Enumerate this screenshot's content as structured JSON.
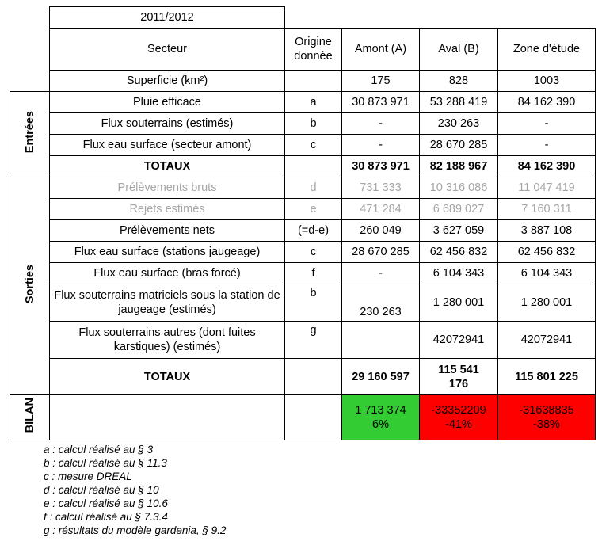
{
  "year": "2011/2012",
  "headers": {
    "secteur": "Secteur",
    "origine": "Origine donnée",
    "amont": "Amont (A)",
    "aval": "Aval (B)",
    "zone": "Zone d'étude"
  },
  "superficie": {
    "label": "Superficie (km²)",
    "amont": "175",
    "aval": "828",
    "zone": "1003"
  },
  "entrees": {
    "label": "Entrées",
    "rows": [
      {
        "label": "Pluie efficace",
        "origine": "a",
        "amont": "30 873 971",
        "aval": "53 288 419",
        "zone": "84 162 390"
      },
      {
        "label": "Flux souterrains (estimés)",
        "origine": "b",
        "amont": "-",
        "aval": "230 263",
        "zone": "-"
      },
      {
        "label": "Flux eau surface (secteur amont)",
        "origine": "c",
        "amont": "-",
        "aval": "28 670 285",
        "zone": "-"
      }
    ],
    "totaux": {
      "label": "TOTAUX",
      "amont": "30 873 971",
      "aval": "82 188 967",
      "zone": "84 162 390"
    }
  },
  "sorties": {
    "label": "Sorties",
    "rows": [
      {
        "label": "Prélèvements bruts",
        "origine": "d",
        "amont": "731 333",
        "aval": "10 316 086",
        "zone": "11 047 419"
      },
      {
        "label": "Rejets estimés",
        "origine": "e",
        "amont": "471 284",
        "aval": "6 689 027",
        "zone": "7 160 311"
      },
      {
        "label": "Prélèvements nets",
        "origine": "(=d-e)",
        "amont": "260 049",
        "aval": "3 627 059",
        "zone": "3 887 108"
      },
      {
        "label": "Flux eau surface (stations jaugeage)",
        "origine": "c",
        "amont": "28 670 285",
        "aval": "62 456 832",
        "zone": "62 456 832"
      },
      {
        "label": "Flux eau surface (bras forcé)",
        "origine": "f",
        "amont": "-",
        "aval": "6 104 343",
        "zone": "6 104 343"
      },
      {
        "label": "Flux souterrains matriciels sous la station de jaugeage (estimés)",
        "origine": "b",
        "amont": "230 263",
        "aval": "1 280 001",
        "zone": "1 280 001"
      },
      {
        "label": "Flux souterrains autres (dont fuites karstiques) (estimés)",
        "origine": "g",
        "amont": "",
        "aval": "42072941",
        "zone": "42072941"
      }
    ],
    "totaux": {
      "label": "TOTAUX",
      "amont": "29 160 597",
      "aval": "115 541 176",
      "zone": "115 801 225"
    }
  },
  "bilan": {
    "label": "BILAN",
    "amont": {
      "value": "1 713 374",
      "pct": "6%",
      "color": "#33cc33"
    },
    "aval": {
      "value": "-33352209",
      "pct": "-41%",
      "color": "#ff0000"
    },
    "zone": {
      "value": "-31638835",
      "pct": "-38%",
      "color": "#ff0000"
    }
  },
  "notes": [
    "a : calcul réalisé au § 3",
    "b : calcul réalisé au § 11.3",
    "c : mesure DREAL",
    "d : calcul réalisé au § 10",
    "e : calcul réalisé au § 10.6",
    "f : calcul réalisé au § 7.3.4",
    "g : résultats du modèle gardenia, § 9.2"
  ]
}
